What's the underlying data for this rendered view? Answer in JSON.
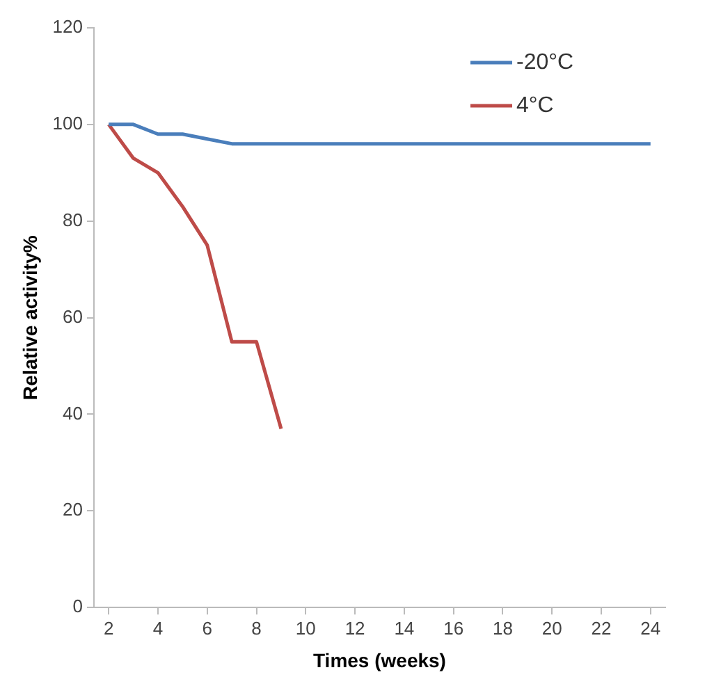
{
  "chart_data": {
    "type": "line",
    "xlabel": "Times (weeks)",
    "ylabel": "Relative activity%",
    "x": [
      2,
      3,
      4,
      5,
      6,
      7,
      8,
      9,
      10,
      11,
      12,
      13,
      14,
      15,
      16,
      17,
      18,
      19,
      20,
      21,
      22,
      23,
      24
    ],
    "xlim": [
      1.4,
      24.6
    ],
    "xticks": [
      2,
      4,
      6,
      8,
      10,
      12,
      14,
      16,
      18,
      20,
      22,
      24
    ],
    "series": [
      {
        "name": "-20°C",
        "color": "#4a7ebb",
        "values": [
          100,
          100,
          98,
          98,
          97,
          96,
          96,
          96,
          96,
          96,
          96,
          96,
          96,
          96,
          96,
          96,
          96,
          96,
          96,
          96,
          96,
          96,
          96
        ]
      },
      {
        "name": "4°C",
        "color": "#be4b48",
        "values": [
          100,
          93,
          90,
          83,
          75,
          55,
          55,
          37,
          null,
          null,
          null,
          null,
          null,
          null,
          null,
          null,
          null,
          null,
          null,
          null,
          null,
          null,
          null
        ]
      }
    ],
    "ylim": [
      0,
      120
    ],
    "yticks": [
      0,
      20,
      40,
      60,
      80,
      100,
      120
    ],
    "grid": false,
    "legend": "top right",
    "marker": "none",
    "line_style": "solid"
  }
}
